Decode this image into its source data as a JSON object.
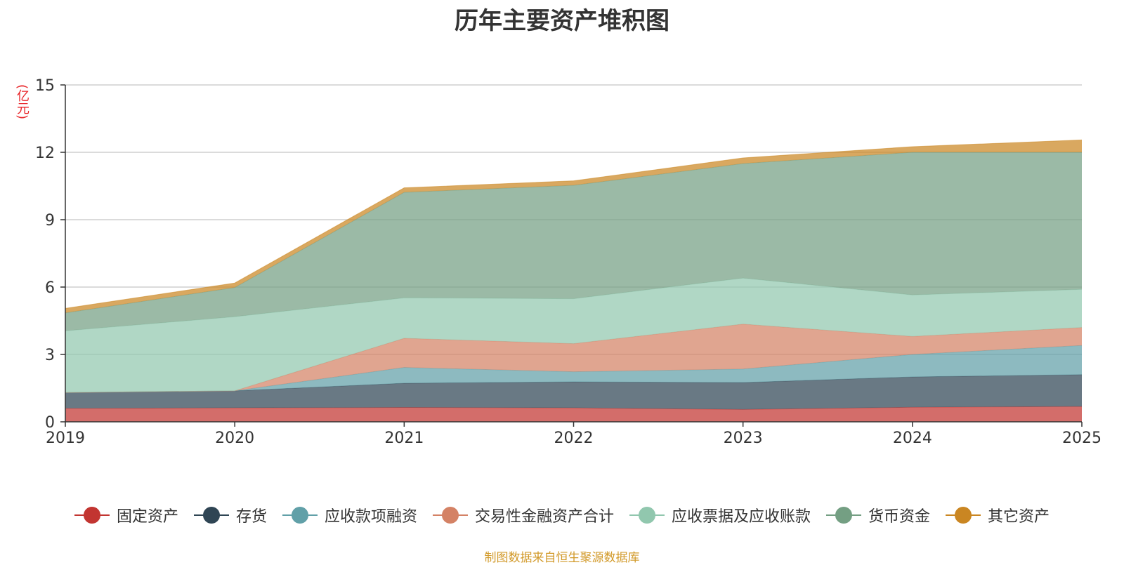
{
  "chart_data": {
    "type": "area",
    "stacked": true,
    "title": "历年主要资产堆积图",
    "ylabel": "(亿元)",
    "xlabel": "",
    "ylim": [
      0,
      15
    ],
    "yticks": [
      0,
      3,
      6,
      9,
      12,
      15
    ],
    "categories": [
      "2019",
      "2020",
      "2021",
      "2022",
      "2023",
      "2024",
      "2025"
    ],
    "grid": true,
    "legend_position": "bottom",
    "series": [
      {
        "name": "固定资产",
        "color": "#c23531",
        "values": [
          0.6,
          0.62,
          0.64,
          0.62,
          0.55,
          0.65,
          0.68
        ]
      },
      {
        "name": "存货",
        "color": "#2f4554",
        "values": [
          0.7,
          0.76,
          1.08,
          1.16,
          1.2,
          1.35,
          1.42
        ]
      },
      {
        "name": "应收款项融资",
        "color": "#61a0a8",
        "values": [
          0.0,
          0.0,
          0.7,
          0.45,
          0.6,
          1.0,
          1.3
        ]
      },
      {
        "name": "交易性金融资产合计",
        "color": "#d48265",
        "values": [
          0.0,
          0.0,
          1.3,
          1.25,
          2.0,
          0.8,
          0.8
        ]
      },
      {
        "name": "应收票据及应收账款",
        "color": "#91c7ae",
        "values": [
          2.75,
          3.3,
          1.8,
          2.0,
          2.05,
          1.85,
          1.7
        ]
      },
      {
        "name": "货币资金",
        "color": "#749f83",
        "values": [
          0.8,
          1.3,
          4.7,
          5.05,
          5.1,
          6.35,
          6.1
        ]
      },
      {
        "name": "其它资产",
        "color": "#ca8622",
        "values": [
          0.2,
          0.2,
          0.2,
          0.2,
          0.25,
          0.25,
          0.55
        ]
      }
    ]
  },
  "footer": "制图数据来自恒生聚源数据库"
}
